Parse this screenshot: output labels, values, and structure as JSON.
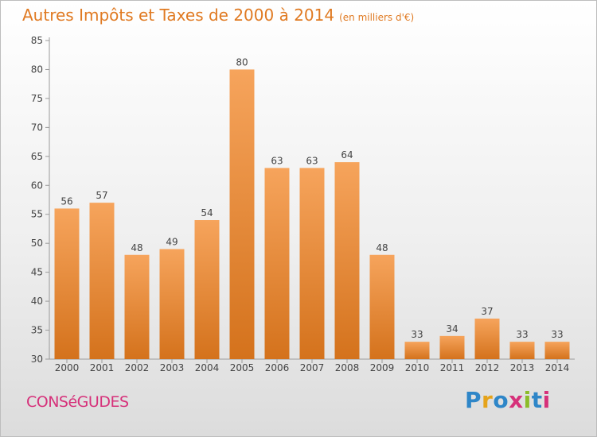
{
  "title": "Autres Impôts et Taxes de 2000 à 2014",
  "subtitle": "(en milliers d'€)",
  "commune": "CONSéGUDES",
  "brand": {
    "text": "Proxiti",
    "letter_colors": [
      "#2e86c8",
      "#e5a31a",
      "#2e86c8",
      "#d6317a",
      "#8cbc2a",
      "#2e86c8",
      "#d6317a"
    ]
  },
  "colors": {
    "bar_light": "#f6a45c",
    "bar_dark": "#d4721c",
    "title": "#e07a22",
    "commune": "#d6317a"
  },
  "chart_data": {
    "type": "bar",
    "title": "Autres Impôts et Taxes de 2000 à 2014",
    "subtitle": "(en milliers d'€)",
    "categories": [
      "2000",
      "2001",
      "2002",
      "2003",
      "2004",
      "2005",
      "2006",
      "2007",
      "2008",
      "2009",
      "2010",
      "2011",
      "2012",
      "2013",
      "2014"
    ],
    "values": [
      56,
      57,
      48,
      49,
      54,
      80,
      63,
      63,
      64,
      48,
      33,
      34,
      37,
      33,
      33
    ],
    "ylim": [
      30,
      85
    ],
    "yticks": [
      30,
      35,
      40,
      45,
      50,
      55,
      60,
      65,
      70,
      75,
      80,
      85
    ],
    "xlabel": "",
    "ylabel": "",
    "grid": false,
    "legend": "none",
    "data_labels": true
  }
}
